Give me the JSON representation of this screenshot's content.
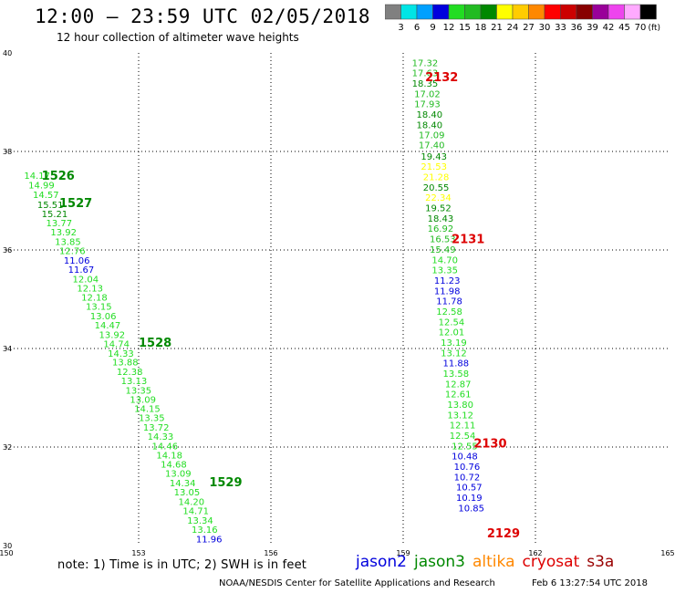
{
  "header": {
    "title": "12:00 – 23:59 UTC 02/05/2018",
    "subtitle": "12 hour collection of altimeter wave heights"
  },
  "legend": {
    "unit": "(ft)",
    "bins": [
      {
        "label": "3",
        "color": "#808080"
      },
      {
        "label": "6",
        "color": "#00e5e5"
      },
      {
        "label": "9",
        "color": "#00a0ff"
      },
      {
        "label": "12",
        "color": "#0000dd"
      },
      {
        "label": "15",
        "color": "#22dd22"
      },
      {
        "label": "18",
        "color": "#22bb22"
      },
      {
        "label": "21",
        "color": "#008800"
      },
      {
        "label": "24",
        "color": "#ffff00"
      },
      {
        "label": "27",
        "color": "#ffcc00"
      },
      {
        "label": "30",
        "color": "#ff8800"
      },
      {
        "label": "33",
        "color": "#ff0000"
      },
      {
        "label": "36",
        "color": "#cc0000"
      },
      {
        "label": "39",
        "color": "#880000"
      },
      {
        "label": "42",
        "color": "#990099"
      },
      {
        "label": "45",
        "color": "#ee44ee"
      },
      {
        "label": "70",
        "color": "#ffaaff"
      },
      {
        "label": "",
        "color": "#000000"
      }
    ]
  },
  "axes": {
    "x_ticks": [
      "150",
      "153",
      "156",
      "159",
      "162",
      "165"
    ],
    "y_ticks": [
      "40",
      "38",
      "36",
      "34",
      "32",
      "30"
    ],
    "x_range": [
      150,
      165
    ],
    "y_range": [
      30,
      40
    ]
  },
  "chart_data": {
    "type": "scatter",
    "title": "12 hour collection of altimeter wave heights",
    "unit": "ft",
    "tracks": [
      {
        "satellite": "jason3",
        "time_labels": [
          {
            "text": "1526",
            "lon": 150.8,
            "lat": 37.52
          },
          {
            "text": "1527",
            "lon": 151.2,
            "lat": 36.96
          },
          {
            "text": "1528",
            "lon": 153.0,
            "lat": 34.13
          },
          {
            "text": "1529",
            "lon": 154.6,
            "lat": 31.3
          }
        ],
        "points": [
          {
            "lon": 150.4,
            "lat": 37.52,
            "swh": "14.17",
            "color": "#22dd22"
          },
          {
            "lon": 150.5,
            "lat": 37.32,
            "swh": "14.99",
            "color": "#22dd22"
          },
          {
            "lon": 150.6,
            "lat": 37.13,
            "swh": "14.57",
            "color": "#22dd22"
          },
          {
            "lon": 150.7,
            "lat": 36.93,
            "swh": "15.51",
            "color": "#008800"
          },
          {
            "lon": 150.8,
            "lat": 36.74,
            "swh": "15.21",
            "color": "#008800"
          },
          {
            "lon": 150.9,
            "lat": 36.56,
            "swh": "13.77",
            "color": "#22dd22"
          },
          {
            "lon": 151.0,
            "lat": 36.37,
            "swh": "13.92",
            "color": "#22dd22"
          },
          {
            "lon": 151.1,
            "lat": 36.18,
            "swh": "13.85",
            "color": "#22dd22"
          },
          {
            "lon": 151.2,
            "lat": 35.99,
            "swh": "12.76",
            "color": "#22dd22"
          },
          {
            "lon": 151.3,
            "lat": 35.8,
            "swh": "11.06",
            "color": "#0000dd"
          },
          {
            "lon": 151.4,
            "lat": 35.61,
            "swh": "11.67",
            "color": "#0000dd"
          },
          {
            "lon": 151.5,
            "lat": 35.42,
            "swh": "12.04",
            "color": "#22dd22"
          },
          {
            "lon": 151.6,
            "lat": 35.23,
            "swh": "12.13",
            "color": "#22dd22"
          },
          {
            "lon": 151.7,
            "lat": 35.05,
            "swh": "12.18",
            "color": "#22dd22"
          },
          {
            "lon": 151.8,
            "lat": 34.86,
            "swh": "13.15",
            "color": "#22dd22"
          },
          {
            "lon": 151.9,
            "lat": 34.67,
            "swh": "13.06",
            "color": "#22dd22"
          },
          {
            "lon": 152.0,
            "lat": 34.48,
            "swh": "14.47",
            "color": "#22dd22"
          },
          {
            "lon": 152.1,
            "lat": 34.29,
            "swh": "13.92",
            "color": "#22dd22"
          },
          {
            "lon": 152.2,
            "lat": 34.1,
            "swh": "14.74",
            "color": "#22dd22"
          },
          {
            "lon": 152.3,
            "lat": 33.91,
            "swh": "14.33",
            "color": "#22dd22"
          },
          {
            "lon": 152.4,
            "lat": 33.73,
            "swh": "13.88",
            "color": "#22dd22"
          },
          {
            "lon": 152.5,
            "lat": 33.54,
            "swh": "12.38",
            "color": "#22dd22"
          },
          {
            "lon": 152.6,
            "lat": 33.35,
            "swh": "13.13",
            "color": "#22dd22"
          },
          {
            "lon": 152.7,
            "lat": 33.16,
            "swh": "13.35",
            "color": "#22dd22"
          },
          {
            "lon": 152.8,
            "lat": 32.97,
            "swh": "13.09",
            "color": "#22dd22"
          },
          {
            "lon": 152.9,
            "lat": 32.79,
            "swh": "14.15",
            "color": "#22dd22"
          },
          {
            "lon": 153.0,
            "lat": 32.6,
            "swh": "13.35",
            "color": "#22dd22"
          },
          {
            "lon": 153.1,
            "lat": 32.41,
            "swh": "13.72",
            "color": "#22dd22"
          },
          {
            "lon": 153.2,
            "lat": 32.22,
            "swh": "14.33",
            "color": "#22dd22"
          },
          {
            "lon": 153.3,
            "lat": 32.03,
            "swh": "14.46",
            "color": "#22dd22"
          },
          {
            "lon": 153.4,
            "lat": 31.84,
            "swh": "14.18",
            "color": "#22dd22"
          },
          {
            "lon": 153.5,
            "lat": 31.66,
            "swh": "14.68",
            "color": "#22dd22"
          },
          {
            "lon": 153.6,
            "lat": 31.47,
            "swh": "13.09",
            "color": "#22dd22"
          },
          {
            "lon": 153.7,
            "lat": 31.28,
            "swh": "14.34",
            "color": "#22dd22"
          },
          {
            "lon": 153.8,
            "lat": 31.09,
            "swh": "13.05",
            "color": "#22dd22"
          },
          {
            "lon": 153.9,
            "lat": 30.9,
            "swh": "14.20",
            "color": "#22dd22"
          },
          {
            "lon": 154.0,
            "lat": 30.71,
            "swh": "14.71",
            "color": "#22dd22"
          },
          {
            "lon": 154.1,
            "lat": 30.52,
            "swh": "13.34",
            "color": "#22dd22"
          },
          {
            "lon": 154.2,
            "lat": 30.33,
            "swh": "13.16",
            "color": "#22dd22"
          },
          {
            "lon": 154.3,
            "lat": 30.14,
            "swh": "11.96",
            "color": "#0000dd"
          }
        ]
      },
      {
        "satellite": "cryosat",
        "time_labels": [
          {
            "text": "2132",
            "lon": 159.5,
            "lat": 39.52
          },
          {
            "text": "2131",
            "lon": 160.1,
            "lat": 36.23
          },
          {
            "text": "2130",
            "lon": 160.6,
            "lat": 32.08
          },
          {
            "text": "2129",
            "lon": 160.9,
            "lat": 30.26
          }
        ],
        "points": [
          {
            "lon": 159.2,
            "lat": 39.81,
            "swh": "17.32",
            "color": "#22bb22"
          },
          {
            "lon": 159.2,
            "lat": 39.6,
            "swh": "17.63",
            "color": "#22bb22"
          },
          {
            "lon": 159.2,
            "lat": 39.39,
            "swh": "18.35",
            "color": "#008800"
          },
          {
            "lon": 159.25,
            "lat": 39.18,
            "swh": "17.02",
            "color": "#22bb22"
          },
          {
            "lon": 159.25,
            "lat": 38.97,
            "swh": "17.93",
            "color": "#22bb22"
          },
          {
            "lon": 159.3,
            "lat": 38.76,
            "swh": "18.40",
            "color": "#008800"
          },
          {
            "lon": 159.3,
            "lat": 38.55,
            "swh": "18.40",
            "color": "#008800"
          },
          {
            "lon": 159.35,
            "lat": 38.34,
            "swh": "17.09",
            "color": "#22bb22"
          },
          {
            "lon": 159.35,
            "lat": 38.14,
            "swh": "17.40",
            "color": "#22bb22"
          },
          {
            "lon": 159.4,
            "lat": 37.91,
            "swh": "19.43",
            "color": "#008800"
          },
          {
            "lon": 159.4,
            "lat": 37.7,
            "swh": "21.53",
            "color": "#ffff00"
          },
          {
            "lon": 159.45,
            "lat": 37.49,
            "swh": "21.28",
            "color": "#ffff00"
          },
          {
            "lon": 159.45,
            "lat": 37.28,
            "swh": "20.55",
            "color": "#008800"
          },
          {
            "lon": 159.5,
            "lat": 37.07,
            "swh": "22.34",
            "color": "#ffff00"
          },
          {
            "lon": 159.5,
            "lat": 36.86,
            "swh": "19.52",
            "color": "#008800"
          },
          {
            "lon": 159.55,
            "lat": 36.65,
            "swh": "18.43",
            "color": "#008800"
          },
          {
            "lon": 159.55,
            "lat": 36.44,
            "swh": "16.92",
            "color": "#22bb22"
          },
          {
            "lon": 159.6,
            "lat": 36.23,
            "swh": "16.53",
            "color": "#22bb22"
          },
          {
            "lon": 159.6,
            "lat": 36.02,
            "swh": "15.49",
            "color": "#22bb22"
          },
          {
            "lon": 159.65,
            "lat": 35.81,
            "swh": "14.70",
            "color": "#22dd22"
          },
          {
            "lon": 159.65,
            "lat": 35.6,
            "swh": "13.35",
            "color": "#22dd22"
          },
          {
            "lon": 159.7,
            "lat": 35.39,
            "swh": "11.23",
            "color": "#0000dd"
          },
          {
            "lon": 159.7,
            "lat": 35.18,
            "swh": "11.98",
            "color": "#0000dd"
          },
          {
            "lon": 159.75,
            "lat": 34.97,
            "swh": "11.78",
            "color": "#0000dd"
          },
          {
            "lon": 159.75,
            "lat": 34.76,
            "swh": "12.58",
            "color": "#22dd22"
          },
          {
            "lon": 159.8,
            "lat": 34.55,
            "swh": "12.54",
            "color": "#22dd22"
          },
          {
            "lon": 159.8,
            "lat": 34.34,
            "swh": "12.01",
            "color": "#22dd22"
          },
          {
            "lon": 159.85,
            "lat": 34.13,
            "swh": "13.19",
            "color": "#22dd22"
          },
          {
            "lon": 159.85,
            "lat": 33.92,
            "swh": "13.12",
            "color": "#22dd22"
          },
          {
            "lon": 159.9,
            "lat": 33.71,
            "swh": "11.88",
            "color": "#0000dd"
          },
          {
            "lon": 159.9,
            "lat": 33.5,
            "swh": "13.58",
            "color": "#22dd22"
          },
          {
            "lon": 159.95,
            "lat": 33.29,
            "swh": "12.87",
            "color": "#22dd22"
          },
          {
            "lon": 159.95,
            "lat": 33.08,
            "swh": "12.61",
            "color": "#22dd22"
          },
          {
            "lon": 160.0,
            "lat": 32.87,
            "swh": "13.80",
            "color": "#22dd22"
          },
          {
            "lon": 160.0,
            "lat": 32.66,
            "swh": "13.12",
            "color": "#22dd22"
          },
          {
            "lon": 160.05,
            "lat": 32.45,
            "swh": "12.11",
            "color": "#22dd22"
          },
          {
            "lon": 160.05,
            "lat": 32.24,
            "swh": "12.54",
            "color": "#22dd22"
          },
          {
            "lon": 160.1,
            "lat": 32.03,
            "swh": "12.55",
            "color": "#22dd22"
          },
          {
            "lon": 160.1,
            "lat": 31.82,
            "swh": "10.48",
            "color": "#0000dd"
          },
          {
            "lon": 160.15,
            "lat": 31.61,
            "swh": "10.76",
            "color": "#0000dd"
          },
          {
            "lon": 160.15,
            "lat": 31.4,
            "swh": "10.72",
            "color": "#0000dd"
          },
          {
            "lon": 160.2,
            "lat": 31.19,
            "swh": "10.57",
            "color": "#0000dd"
          },
          {
            "lon": 160.2,
            "lat": 30.98,
            "swh": "10.19",
            "color": "#0000dd"
          },
          {
            "lon": 160.25,
            "lat": 30.77,
            "swh": "10.85",
            "color": "#0000dd"
          }
        ]
      }
    ]
  },
  "footer": {
    "note": "note: 1) Time is in UTC; 2) SWH is in feet",
    "satellites": [
      {
        "name": "jason2",
        "color": "#0000dd"
      },
      {
        "name": "jason3",
        "color": "#008800"
      },
      {
        "name": "altika",
        "color": "#ff8800"
      },
      {
        "name": "cryosat",
        "color": "#dd0000"
      },
      {
        "name": "s3a",
        "color": "#990000"
      }
    ],
    "credit": "NOAA/NESDIS Center for Satellite Applications and Research",
    "issued": "Feb  6 13:27:54 UTC 2018"
  }
}
